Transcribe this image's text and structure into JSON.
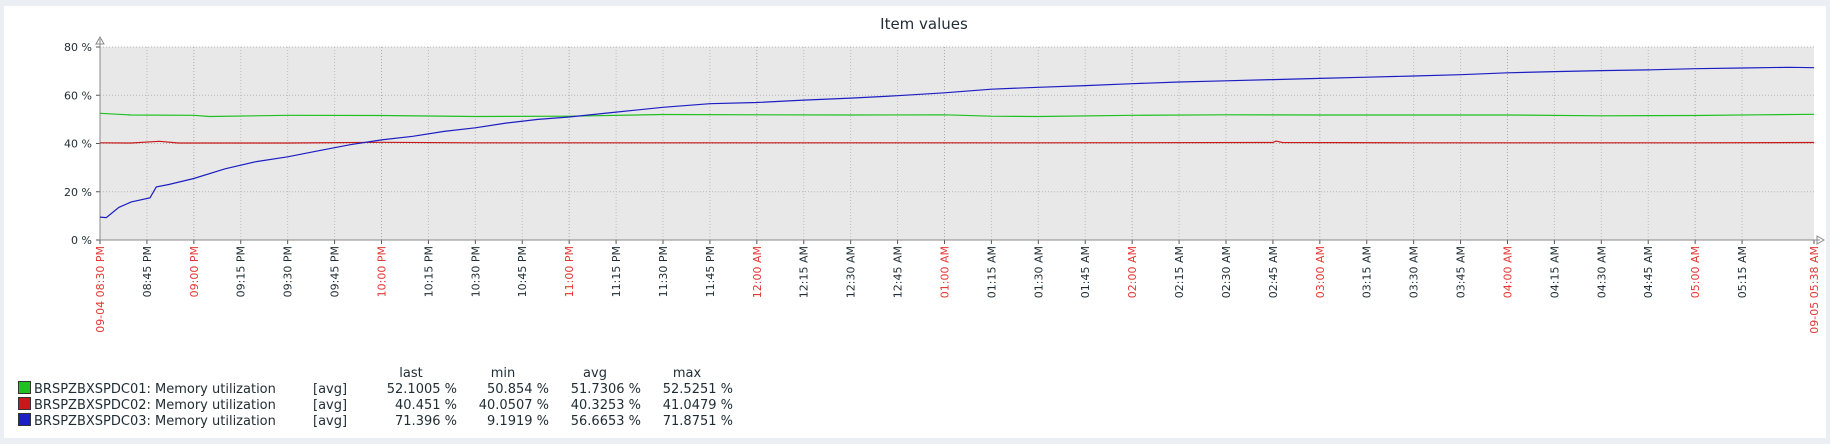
{
  "chart_data": {
    "type": "line",
    "title": "Item values",
    "ylim": [
      0,
      80
    ],
    "yticks": [
      0,
      20,
      40,
      60,
      80
    ],
    "ytick_labels": [
      "0 %",
      "20 %",
      "40 %",
      "60 %",
      "80 %"
    ],
    "x_range_minutes": [
      0,
      548
    ],
    "xticks": [
      {
        "t": 0,
        "label": "09-04 08:30 PM",
        "major": true
      },
      {
        "t": 15,
        "label": "08:45 PM",
        "major": false
      },
      {
        "t": 30,
        "label": "09:00 PM",
        "major": true
      },
      {
        "t": 45,
        "label": "09:15 PM",
        "major": false
      },
      {
        "t": 60,
        "label": "09:30 PM",
        "major": false
      },
      {
        "t": 75,
        "label": "09:45 PM",
        "major": false
      },
      {
        "t": 90,
        "label": "10:00 PM",
        "major": true
      },
      {
        "t": 105,
        "label": "10:15 PM",
        "major": false
      },
      {
        "t": 120,
        "label": "10:30 PM",
        "major": false
      },
      {
        "t": 135,
        "label": "10:45 PM",
        "major": false
      },
      {
        "t": 150,
        "label": "11:00 PM",
        "major": true
      },
      {
        "t": 165,
        "label": "11:15 PM",
        "major": false
      },
      {
        "t": 180,
        "label": "11:30 PM",
        "major": false
      },
      {
        "t": 195,
        "label": "11:45 PM",
        "major": false
      },
      {
        "t": 210,
        "label": "12:00 AM",
        "major": true
      },
      {
        "t": 225,
        "label": "12:15 AM",
        "major": false
      },
      {
        "t": 240,
        "label": "12:30 AM",
        "major": false
      },
      {
        "t": 255,
        "label": "12:45 AM",
        "major": false
      },
      {
        "t": 270,
        "label": "01:00 AM",
        "major": true
      },
      {
        "t": 285,
        "label": "01:15 AM",
        "major": false
      },
      {
        "t": 300,
        "label": "01:30 AM",
        "major": false
      },
      {
        "t": 315,
        "label": "01:45 AM",
        "major": false
      },
      {
        "t": 330,
        "label": "02:00 AM",
        "major": true
      },
      {
        "t": 345,
        "label": "02:15 AM",
        "major": false
      },
      {
        "t": 360,
        "label": "02:30 AM",
        "major": false
      },
      {
        "t": 375,
        "label": "02:45 AM",
        "major": false
      },
      {
        "t": 390,
        "label": "03:00 AM",
        "major": true
      },
      {
        "t": 405,
        "label": "03:15 AM",
        "major": false
      },
      {
        "t": 420,
        "label": "03:30 AM",
        "major": false
      },
      {
        "t": 435,
        "label": "03:45 AM",
        "major": false
      },
      {
        "t": 450,
        "label": "04:00 AM",
        "major": true
      },
      {
        "t": 465,
        "label": "04:15 AM",
        "major": false
      },
      {
        "t": 480,
        "label": "04:30 AM",
        "major": false
      },
      {
        "t": 495,
        "label": "04:45 AM",
        "major": false
      },
      {
        "t": 510,
        "label": "05:00 AM",
        "major": true
      },
      {
        "t": 525,
        "label": "05:15 AM",
        "major": false
      },
      {
        "t": 548,
        "label": "09-05 05:38 AM",
        "major": true
      }
    ],
    "series": [
      {
        "name": "BRSPZBXSPDC01: Memory utilization",
        "color": "#1fc01f",
        "points": [
          [
            0,
            52.5
          ],
          [
            10,
            51.8
          ],
          [
            30,
            51.7
          ],
          [
            35,
            51.2
          ],
          [
            60,
            51.7
          ],
          [
            90,
            51.6
          ],
          [
            120,
            51.2
          ],
          [
            150,
            51.3
          ],
          [
            180,
            52.0
          ],
          [
            210,
            51.9
          ],
          [
            240,
            51.8
          ],
          [
            270,
            51.9
          ],
          [
            285,
            51.3
          ],
          [
            300,
            51.2
          ],
          [
            330,
            51.7
          ],
          [
            360,
            51.9
          ],
          [
            390,
            51.8
          ],
          [
            420,
            51.8
          ],
          [
            450,
            51.8
          ],
          [
            480,
            51.5
          ],
          [
            510,
            51.6
          ],
          [
            530,
            51.9
          ],
          [
            548,
            52.1
          ]
        ]
      },
      {
        "name": "BRSPZBXSPDC02: Memory utilization",
        "color": "#c81818",
        "points": [
          [
            0,
            40.3
          ],
          [
            10,
            40.2
          ],
          [
            19,
            40.9
          ],
          [
            25,
            40.2
          ],
          [
            60,
            40.2
          ],
          [
            90,
            40.5
          ],
          [
            120,
            40.3
          ],
          [
            150,
            40.3
          ],
          [
            180,
            40.3
          ],
          [
            210,
            40.3
          ],
          [
            240,
            40.3
          ],
          [
            270,
            40.3
          ],
          [
            300,
            40.3
          ],
          [
            375,
            40.4
          ],
          [
            376,
            41.0
          ],
          [
            378,
            40.4
          ],
          [
            420,
            40.3
          ],
          [
            450,
            40.3
          ],
          [
            480,
            40.3
          ],
          [
            510,
            40.3
          ],
          [
            548,
            40.4
          ]
        ]
      },
      {
        "name": "BRSPZBXSPDC03: Memory utilization",
        "color": "#1c1ec4",
        "points": [
          [
            0,
            9.5
          ],
          [
            2,
            9.3
          ],
          [
            6,
            13.5
          ],
          [
            10,
            15.8
          ],
          [
            16,
            17.5
          ],
          [
            18,
            22.0
          ],
          [
            22,
            23.0
          ],
          [
            30,
            25.5
          ],
          [
            40,
            29.5
          ],
          [
            50,
            32.5
          ],
          [
            60,
            34.5
          ],
          [
            70,
            37.0
          ],
          [
            80,
            39.5
          ],
          [
            90,
            41.5
          ],
          [
            100,
            43.0
          ],
          [
            110,
            45.0
          ],
          [
            120,
            46.5
          ],
          [
            130,
            48.5
          ],
          [
            140,
            50.0
          ],
          [
            150,
            51.0
          ],
          [
            165,
            53.0
          ],
          [
            180,
            55.0
          ],
          [
            195,
            56.5
          ],
          [
            210,
            57.0
          ],
          [
            225,
            58.0
          ],
          [
            240,
            58.8
          ],
          [
            255,
            59.8
          ],
          [
            270,
            61.0
          ],
          [
            285,
            62.5
          ],
          [
            300,
            63.3
          ],
          [
            315,
            64.0
          ],
          [
            330,
            64.8
          ],
          [
            345,
            65.5
          ],
          [
            360,
            66.0
          ],
          [
            375,
            66.5
          ],
          [
            390,
            67.0
          ],
          [
            405,
            67.5
          ],
          [
            420,
            68.0
          ],
          [
            435,
            68.5
          ],
          [
            450,
            69.3
          ],
          [
            465,
            69.8
          ],
          [
            480,
            70.2
          ],
          [
            495,
            70.5
          ],
          [
            510,
            71.0
          ],
          [
            525,
            71.3
          ],
          [
            540,
            71.6
          ],
          [
            548,
            71.4
          ]
        ]
      }
    ],
    "grid": true,
    "legend_position": "bottom-left"
  },
  "legend": {
    "headers": {
      "last": "last",
      "min": "min",
      "avg": "avg",
      "max": "max"
    },
    "rows": [
      {
        "color": "#1fc01f",
        "name": "BRSPZBXSPDC01: Memory utilization",
        "fn": "[avg]",
        "last": "52.1005 %",
        "min": "50.854 %",
        "avg": "51.7306 %",
        "max": "52.5251 %"
      },
      {
        "color": "#c81818",
        "name": "BRSPZBXSPDC02: Memory utilization",
        "fn": "[avg]",
        "last": "40.451 %",
        "min": "40.0507 %",
        "avg": "40.3253 %",
        "max": "41.0479 %"
      },
      {
        "color": "#1c1ec4",
        "name": "BRSPZBXSPDC03: Memory utilization",
        "fn": "[avg]",
        "last": "71.396 %",
        "min": "9.1919 %",
        "avg": "56.6653 %",
        "max": "71.8751 %"
      }
    ]
  }
}
